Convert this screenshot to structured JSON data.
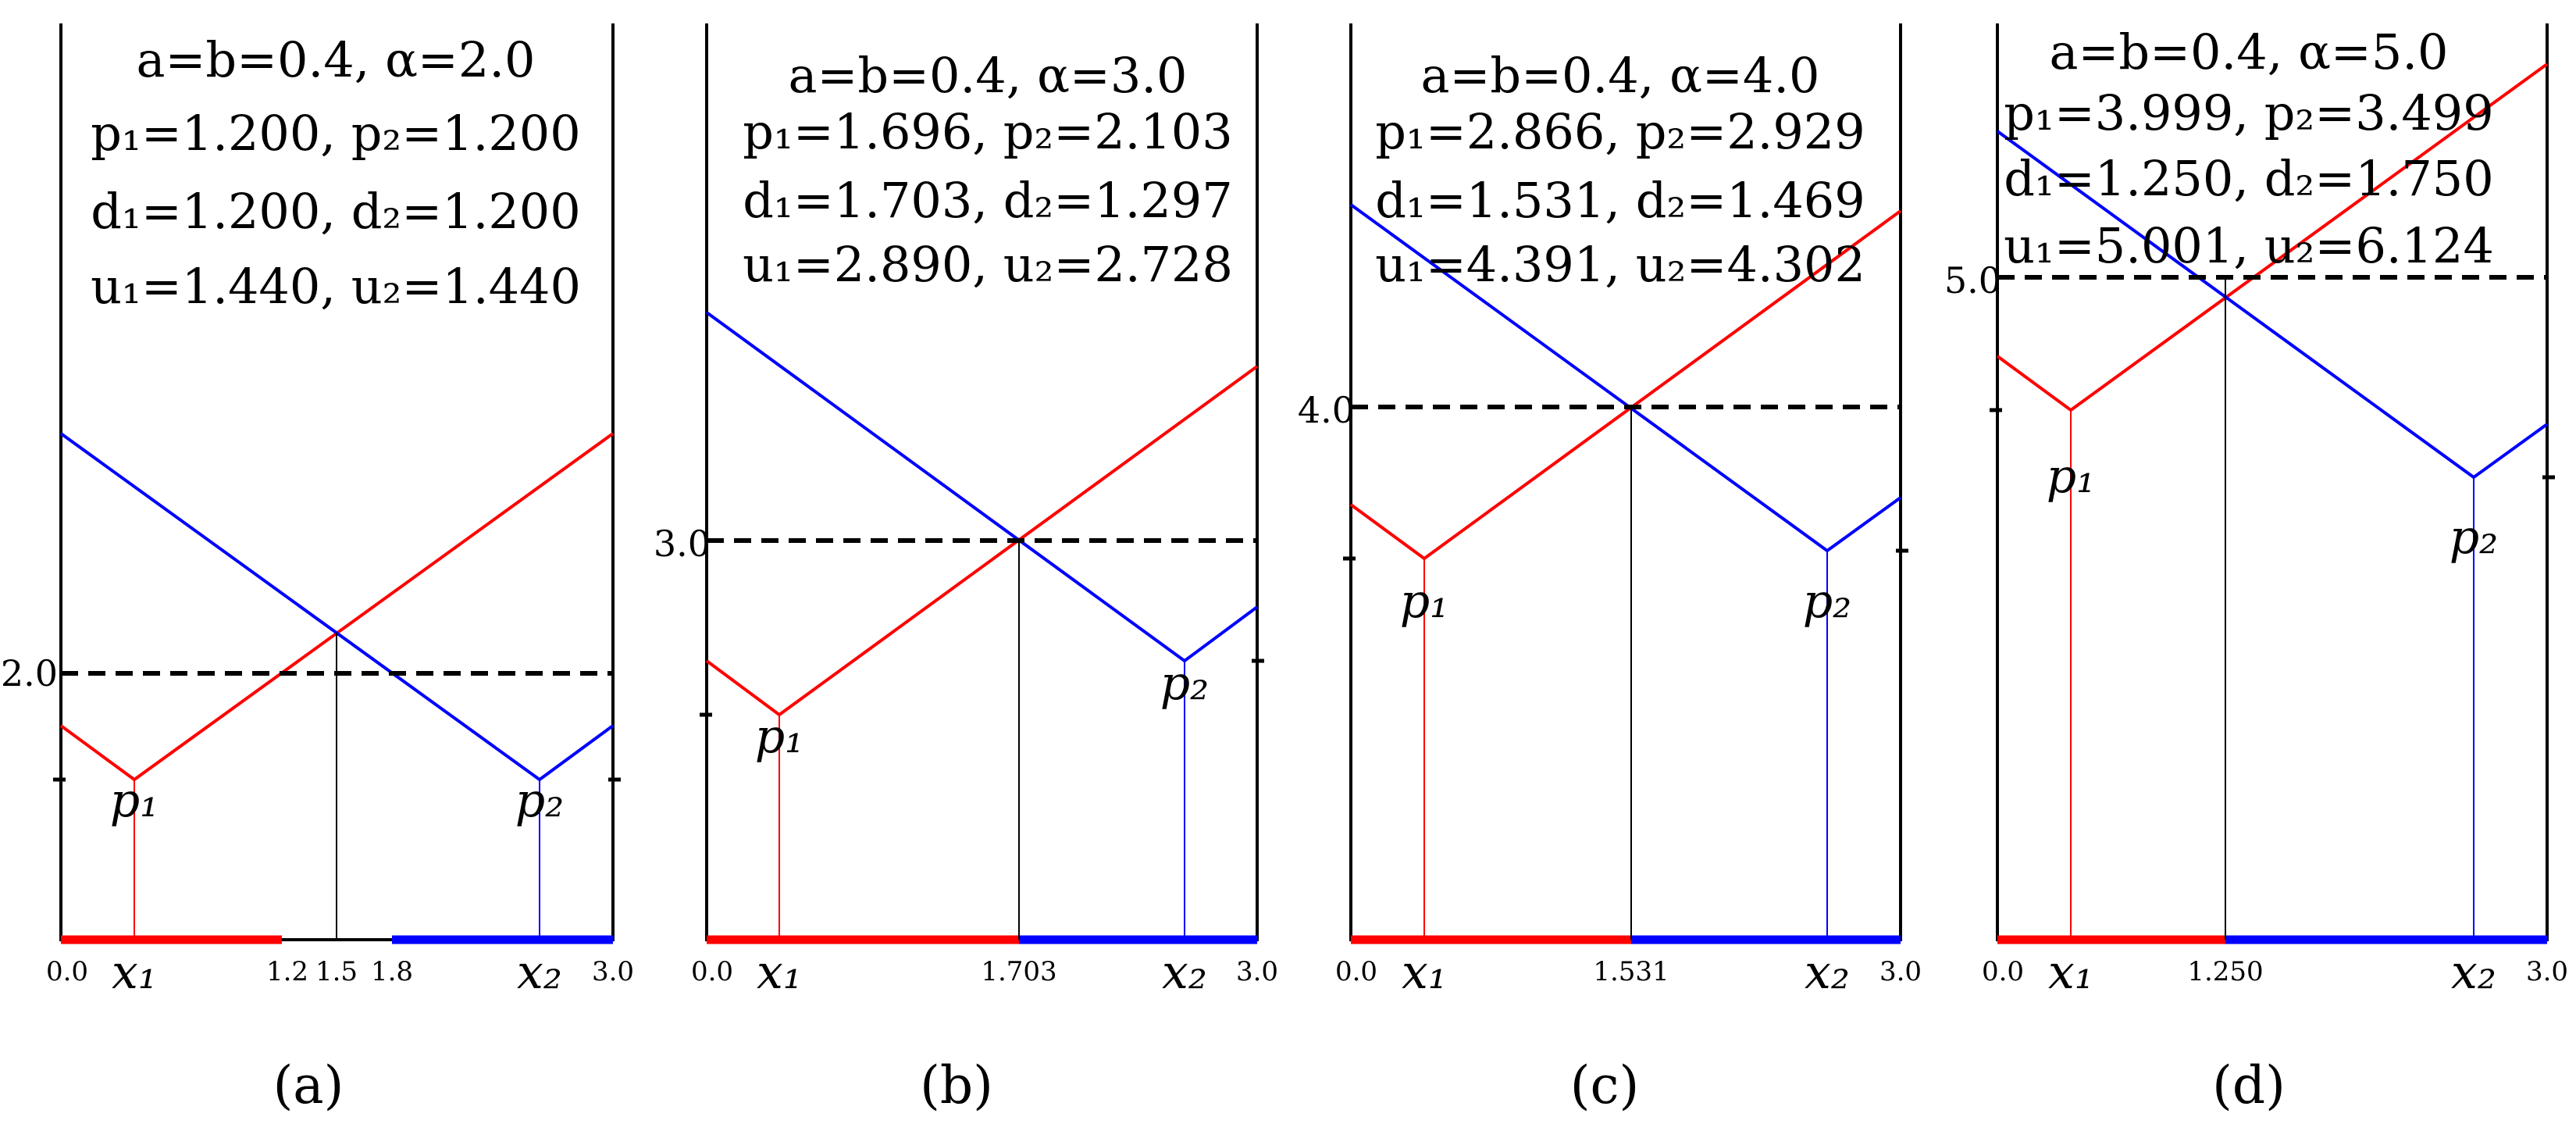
{
  "colors": {
    "red": "#ff0000",
    "blue": "#0000ff",
    "black": "#000000"
  },
  "panels": [
    {
      "caption": "(a)",
      "params": [
        "a=b=0.4, α=2.0",
        "p₁=1.200, p₂=1.200",
        "d₁=1.200, d₂=1.200",
        "u₁=1.440, u₂=1.440"
      ],
      "h_label": "2.0",
      "x_ticks": [
        "0.0",
        "1.2",
        "1.5",
        "1.8",
        "3.0"
      ],
      "x1_label": "x₁",
      "x2_label": "x₂",
      "p1_label": "p₁",
      "p2_label": "p₂"
    },
    {
      "caption": "(b)",
      "params": [
        "a=b=0.4, α=3.0",
        "p₁=1.696, p₂=2.103",
        "d₁=1.703, d₂=1.297",
        "u₁=2.890, u₂=2.728"
      ],
      "h_label": "3.0",
      "x_ticks": [
        "0.0",
        "1.703",
        "3.0"
      ],
      "x1_label": "x₁",
      "x2_label": "x₂",
      "p1_label": "p₁",
      "p2_label": "p₂"
    },
    {
      "caption": "(c)",
      "params": [
        "a=b=0.4, α=4.0",
        "p₁=2.866, p₂=2.929",
        "d₁=1.531, d₂=1.469",
        "u₁=4.391, u₂=4.302"
      ],
      "h_label": "4.0",
      "x_ticks": [
        "0.0",
        "1.531",
        "3.0"
      ],
      "x1_label": "x₁",
      "x2_label": "x₂",
      "p1_label": "p₁",
      "p2_label": "p₂"
    },
    {
      "caption": "(d)",
      "params": [
        "a=b=0.4, α=5.0",
        "p₁=3.999, p₂=3.499",
        "d₁=1.250, d₂=1.750",
        "u₁=5.001, u₂=6.124"
      ],
      "h_label": "5.0",
      "x_ticks": [
        "0.0",
        "1.250",
        "3.0"
      ],
      "x1_label": "x₁",
      "x2_label": "x₂",
      "p1_label": "p₁",
      "p2_label": "p₂"
    }
  ]
}
